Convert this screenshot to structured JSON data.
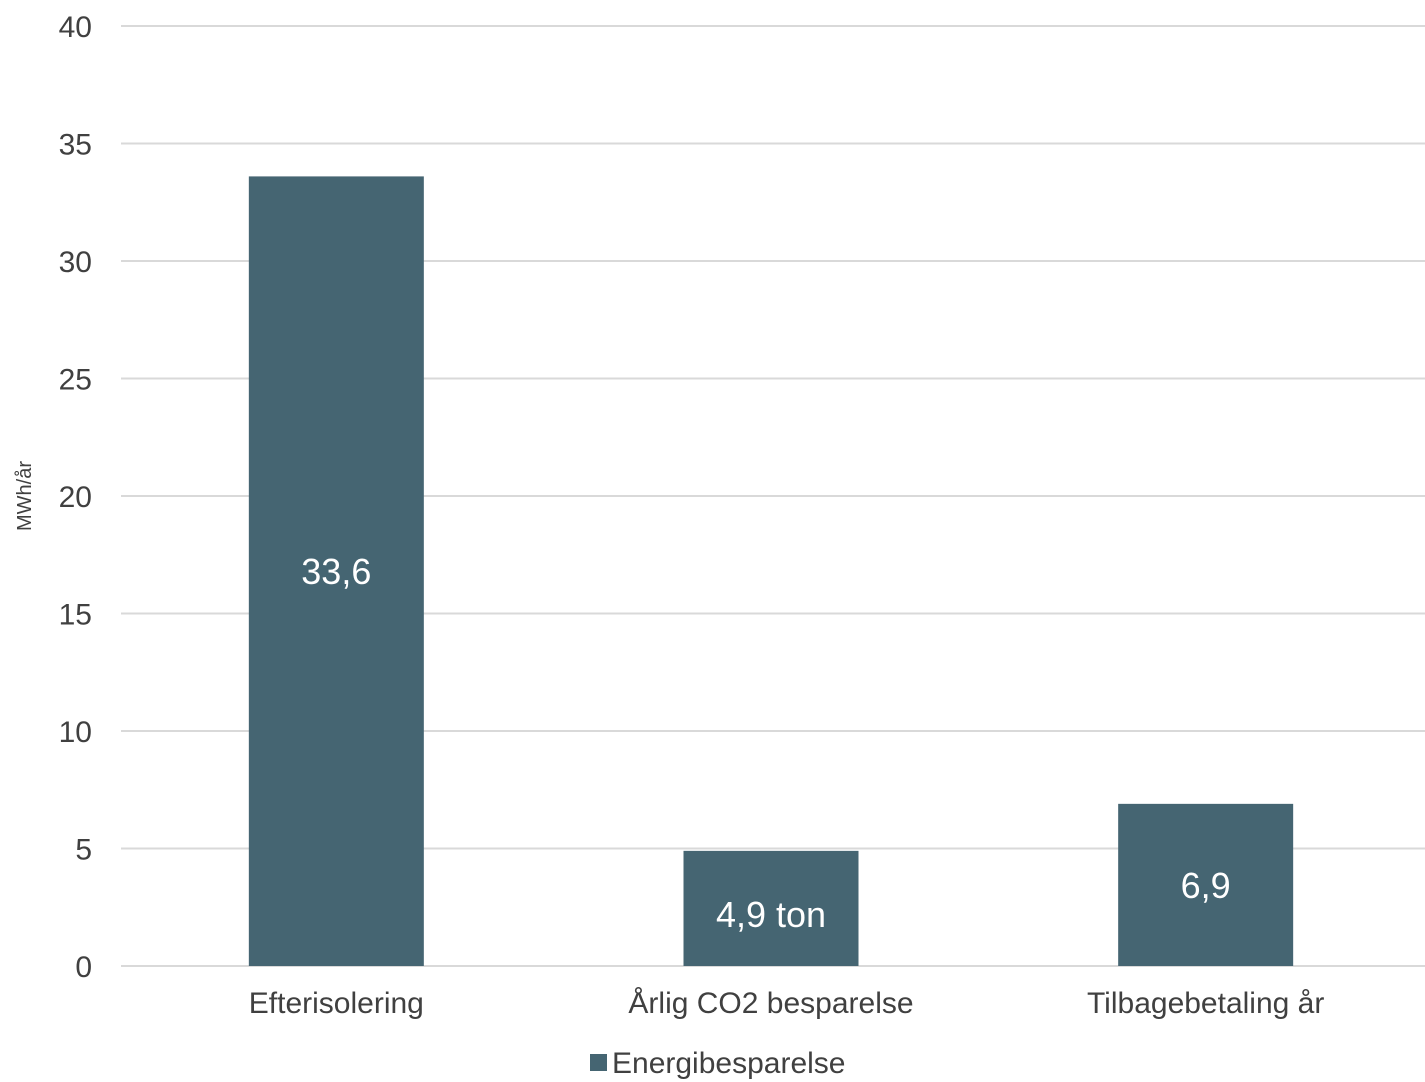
{
  "chart_data": {
    "type": "bar",
    "categories": [
      "Efterisolering",
      "Årlig CO2 besparelse",
      "Tilbagebetaling år"
    ],
    "series": [
      {
        "name": "Energibesparelse",
        "values": [
          33.6,
          4.9,
          6.9
        ],
        "data_labels": [
          "33,6",
          "4,9 ton",
          "6,9"
        ],
        "color": "#456572"
      }
    ],
    "ylabel": "MWh/år",
    "xlabel": "",
    "ylim": [
      0,
      40
    ],
    "yticks": [
      0,
      5,
      10,
      15,
      20,
      25,
      30,
      35,
      40
    ],
    "ytick_labels": [
      "0",
      "5",
      "10",
      "15",
      "20",
      "25",
      "30",
      "35",
      "40"
    ],
    "grid": true,
    "grid_color": "#d9d9d9",
    "legend_position": "bottom"
  }
}
